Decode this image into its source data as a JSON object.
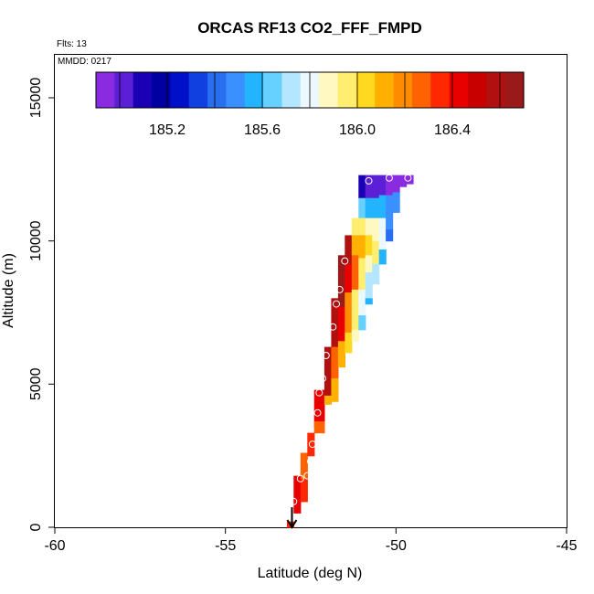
{
  "chart_data": {
    "type": "heatmap",
    "title": "ORCAS RF13 CO2_FFF_FMPD",
    "annotations": {
      "flights": "Flts: 13",
      "mmdd": "MMDD: 0217"
    },
    "xlabel": "Latitude (deg N)",
    "ylabel": "Altitude (m)",
    "xlim": [
      -60,
      -45
    ],
    "ylim": [
      0,
      16500
    ],
    "x_ticks": [
      -60,
      -55,
      -50,
      -45
    ],
    "y_ticks": [
      0,
      5000,
      10000,
      15000
    ],
    "grid": false,
    "colorbar": {
      "min": 184.9,
      "max": 186.7,
      "ticks": [
        185.2,
        185.6,
        186.0,
        186.4
      ],
      "colors": [
        "#8a2be2",
        "#5b1fd6",
        "#1a00b4",
        "#0000a0",
        "#0010c8",
        "#1040e0",
        "#2a6ef0",
        "#3a90ff",
        "#22b4ff",
        "#66d0ff",
        "#b4e6ff",
        "#ecf8ff",
        "#fff8c0",
        "#ffee70",
        "#ffd820",
        "#ffb000",
        "#ff8c00",
        "#ff6200",
        "#ff2800",
        "#e80000",
        "#c80000",
        "#b01010",
        "#9a1a1a"
      ]
    },
    "columns": [
      {
        "x0": -53.2,
        "x1": -53.0,
        "cells": [
          [
            0,
            200,
            186.35
          ]
        ]
      },
      {
        "x0": -53.0,
        "x1": -52.8,
        "cells": [
          [
            500,
            1800,
            186.4
          ]
        ]
      },
      {
        "x0": -52.8,
        "x1": -52.6,
        "cells": [
          [
            900,
            1900,
            186.35
          ],
          [
            1700,
            2600,
            186.3
          ]
        ]
      },
      {
        "x0": -52.6,
        "x1": -52.4,
        "cells": [
          [
            2500,
            3300,
            186.35
          ]
        ]
      },
      {
        "x0": -52.4,
        "x1": -52.1,
        "cells": [
          [
            3500,
            4800,
            186.45
          ],
          [
            3300,
            3700,
            186.25
          ]
        ]
      },
      {
        "x0": -52.1,
        "x1": -51.9,
        "cells": [
          [
            4600,
            6300,
            186.55
          ],
          [
            4300,
            4600,
            186.15
          ]
        ]
      },
      {
        "x0": -51.9,
        "x1": -51.7,
        "cells": [
          [
            6300,
            8000,
            186.6
          ],
          [
            5200,
            6300,
            186.3
          ],
          [
            4400,
            5200,
            186.1
          ]
        ]
      },
      {
        "x0": -51.7,
        "x1": -51.5,
        "cells": [
          [
            7700,
            9500,
            186.7
          ],
          [
            6500,
            7700,
            186.4
          ],
          [
            5600,
            6500,
            186.1
          ]
        ]
      },
      {
        "x0": -51.5,
        "x1": -51.3,
        "cells": [
          [
            9200,
            10200,
            186.6
          ],
          [
            8200,
            9200,
            186.45
          ],
          [
            6800,
            8200,
            186.2
          ],
          [
            6100,
            6800,
            186.0
          ]
        ]
      },
      {
        "x0": -51.3,
        "x1": -51.1,
        "cells": [
          [
            10200,
            10800,
            185.95
          ],
          [
            9500,
            10200,
            186.15
          ],
          [
            8300,
            9500,
            186.3
          ],
          [
            6900,
            8300,
            185.95
          ],
          [
            6500,
            6900,
            185.85
          ]
        ]
      },
      {
        "x0": -51.1,
        "x1": -50.9,
        "cells": [
          [
            11500,
            12300,
            185.1
          ],
          [
            10800,
            11500,
            185.65
          ],
          [
            10200,
            10800,
            185.95
          ],
          [
            9400,
            10200,
            186.1
          ],
          [
            8300,
            9400,
            185.95
          ],
          [
            7400,
            8300,
            185.8
          ],
          [
            6900,
            7400,
            185.65
          ]
        ]
      },
      {
        "x0": -50.9,
        "x1": -50.7,
        "cells": [
          [
            11500,
            12300,
            185.05
          ],
          [
            10800,
            11500,
            185.6
          ],
          [
            10200,
            10800,
            185.9
          ],
          [
            9500,
            10200,
            186.05
          ],
          [
            8900,
            9500,
            185.9
          ],
          [
            8000,
            8900,
            185.75
          ],
          [
            7800,
            8000,
            185.6
          ]
        ]
      },
      {
        "x0": -50.7,
        "x1": -50.5,
        "cells": [
          [
            11500,
            12300,
            185.0
          ],
          [
            10800,
            11500,
            185.55
          ],
          [
            10000,
            10800,
            185.85
          ],
          [
            9200,
            10000,
            185.95
          ],
          [
            8500,
            9200,
            185.7
          ]
        ]
      },
      {
        "x0": -50.5,
        "x1": -50.3,
        "cells": [
          [
            11600,
            12300,
            185.0
          ],
          [
            10800,
            11600,
            185.55
          ],
          [
            9700,
            10800,
            185.8
          ],
          [
            9200,
            9700,
            185.6
          ]
        ]
      },
      {
        "x0": -50.3,
        "x1": -50.1,
        "cells": [
          [
            11600,
            12300,
            184.95
          ],
          [
            10400,
            11600,
            185.5
          ],
          [
            10000,
            10400,
            185.4
          ]
        ]
      },
      {
        "x0": -50.1,
        "x1": -49.9,
        "cells": [
          [
            11700,
            12300,
            184.95
          ],
          [
            11000,
            11700,
            185.45
          ]
        ]
      },
      {
        "x0": -49.9,
        "x1": -49.7,
        "cells": [
          [
            11900,
            12300,
            184.95
          ]
        ]
      },
      {
        "x0": -49.7,
        "x1": -49.5,
        "cells": [
          [
            12000,
            12300,
            184.95
          ]
        ]
      }
    ],
    "sample_points": [
      {
        "lat": -53.0,
        "alt": 900
      },
      {
        "lat": -52.8,
        "alt": 1700
      },
      {
        "lat": -52.6,
        "alt": 1800
      },
      {
        "lat": -52.5,
        "alt": 2300
      },
      {
        "lat": -52.45,
        "alt": 2900
      },
      {
        "lat": -52.3,
        "alt": 4000
      },
      {
        "lat": -52.25,
        "alt": 4700
      },
      {
        "lat": -52.15,
        "alt": 5200
      },
      {
        "lat": -52.05,
        "alt": 6000
      },
      {
        "lat": -51.85,
        "alt": 7000
      },
      {
        "lat": -51.75,
        "alt": 7800
      },
      {
        "lat": -51.65,
        "alt": 8300
      },
      {
        "lat": -51.5,
        "alt": 9300
      },
      {
        "lat": -50.8,
        "alt": 12100
      },
      {
        "lat": -50.2,
        "alt": 12200
      },
      {
        "lat": -49.65,
        "alt": 12200
      }
    ],
    "arrow": {
      "lat": -53.05,
      "alt_start": 700,
      "alt_end": 0
    }
  }
}
